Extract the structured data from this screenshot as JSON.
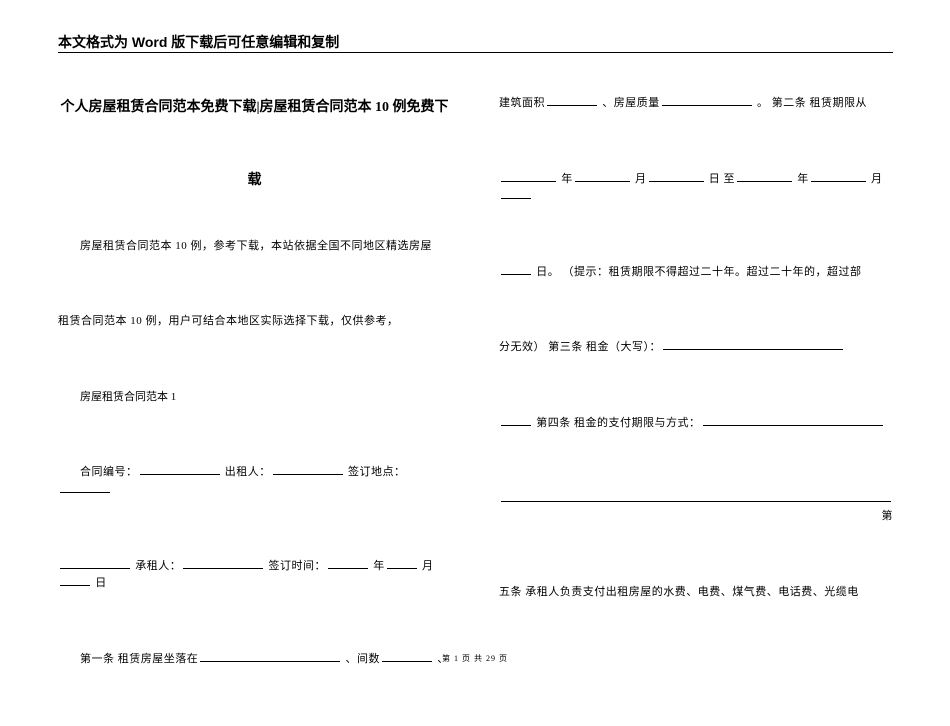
{
  "header_note": "本文格式为 Word 版下载后可任意编辑和复制",
  "left": {
    "title_main": "个人房屋租赁合同范本免费下载|房屋租赁合同范本 10 例免费下",
    "title_cont": "载",
    "p1": "房屋租赁合同范本 10 例，参考下载，本站依据全国不同地区精选房屋",
    "p2": "租赁合同范本 10 例，用户可结合本地区实际选择下载，仅供参考，",
    "subhead": "房屋租赁合同范本 1",
    "r1_a": "合同编号：",
    "r1_b": "出租人：",
    "r1_c": "签订地点：",
    "r2_a": "承租人：",
    "r2_b": "签订时间：",
    "r2_y": "年",
    "r2_m": "月",
    "r2_d": "日",
    "r3_a": "第一条 租赁房屋坐落在",
    "r3_b": "、间数",
    "r3_c": "、"
  },
  "right": {
    "r1_a": "建筑面积",
    "r1_b": "、房屋质量",
    "r1_c": "。 第二条 租赁期限从",
    "r2_y": "年",
    "r2_m": "月",
    "r2_z": "日 至",
    "r2_y2": "年",
    "r2_m2": "月",
    "r3_a": "日。 （提示：租赁期限不得超过二十年。超过二十年的，超过部",
    "r4_a": "分无效） 第三条 租金（大写）：",
    "r5_a": "第四条 租金的支付期限与方式：",
    "r5_b": "第",
    "r6_a": "五条 承租人负责支付出租房屋的水费、电费、煤气费、电话费、光缆电"
  },
  "footer": "第 1 页 共 29 页"
}
